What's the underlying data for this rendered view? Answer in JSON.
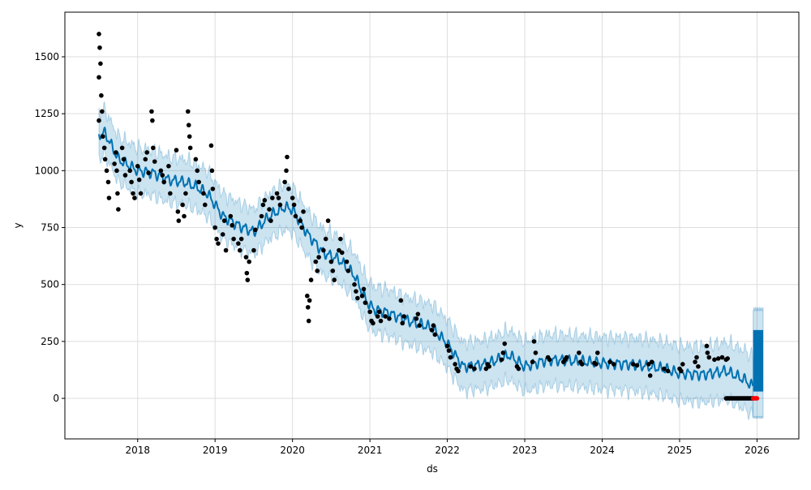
{
  "chart_data": {
    "type": "line",
    "title": "",
    "xlabel": "ds",
    "ylabel": "y",
    "xlim": [
      2017.06,
      2026.54
    ],
    "ylim": [
      -178,
      1696
    ],
    "grid": true,
    "x_ticks": [
      2018,
      2019,
      2020,
      2021,
      2022,
      2023,
      2024,
      2025,
      2026
    ],
    "y_ticks": [
      0,
      250,
      500,
      750,
      1000,
      1250,
      1500
    ],
    "colors": {
      "yhat": "#0072B2",
      "band": "#0072B2",
      "observed": "#000000",
      "flagged": "#FF0000"
    },
    "yhat": [
      [
        2017.5,
        1160
      ],
      [
        2017.58,
        1165
      ],
      [
        2017.75,
        1050
      ],
      [
        2018.0,
        1000
      ],
      [
        2018.2,
        990
      ],
      [
        2018.4,
        960
      ],
      [
        2018.6,
        950
      ],
      [
        2018.75,
        930
      ],
      [
        2018.9,
        900
      ],
      [
        2019.1,
        800
      ],
      [
        2019.3,
        760
      ],
      [
        2019.5,
        730
      ],
      [
        2019.7,
        800
      ],
      [
        2019.9,
        840
      ],
      [
        2020.0,
        830
      ],
      [
        2020.2,
        720
      ],
      [
        2020.4,
        640
      ],
      [
        2020.6,
        610
      ],
      [
        2020.8,
        540
      ],
      [
        2020.95,
        430
      ],
      [
        2021.05,
        390
      ],
      [
        2021.2,
        380
      ],
      [
        2021.5,
        340
      ],
      [
        2021.8,
        310
      ],
      [
        2022.0,
        240
      ],
      [
        2022.2,
        140
      ],
      [
        2022.5,
        150
      ],
      [
        2022.8,
        190
      ],
      [
        2023.0,
        140
      ],
      [
        2023.3,
        170
      ],
      [
        2023.6,
        165
      ],
      [
        2024.0,
        155
      ],
      [
        2024.4,
        150
      ],
      [
        2024.8,
        130
      ],
      [
        2025.0,
        110
      ],
      [
        2025.3,
        105
      ],
      [
        2025.6,
        120
      ],
      [
        2025.85,
        80
      ],
      [
        2025.95,
        50
      ]
    ],
    "band_halfwidth": [
      [
        2017.5,
        100
      ],
      [
        2021.0,
        100
      ],
      [
        2023.0,
        110
      ],
      [
        2025.0,
        120
      ],
      [
        2025.95,
        130
      ]
    ],
    "future": {
      "x_range": [
        2025.95,
        2026.08
      ],
      "yhat_range": [
        30,
        300
      ],
      "band": [
        -90,
        400
      ]
    },
    "observed": [
      [
        2017.5,
        1600
      ],
      [
        2017.51,
        1540
      ],
      [
        2017.52,
        1470
      ],
      [
        2017.5,
        1410
      ],
      [
        2017.53,
        1330
      ],
      [
        2017.54,
        1260
      ],
      [
        2017.5,
        1220
      ],
      [
        2017.55,
        1150
      ],
      [
        2017.57,
        1100
      ],
      [
        2017.58,
        1050
      ],
      [
        2017.6,
        1000
      ],
      [
        2017.62,
        950
      ],
      [
        2017.63,
        880
      ],
      [
        2017.7,
        1030
      ],
      [
        2017.72,
        1080
      ],
      [
        2017.73,
        1000
      ],
      [
        2017.74,
        900
      ],
      [
        2017.75,
        830
      ],
      [
        2017.8,
        1100
      ],
      [
        2017.82,
        1050
      ],
      [
        2017.84,
        980
      ],
      [
        2017.9,
        1000
      ],
      [
        2017.92,
        950
      ],
      [
        2017.94,
        900
      ],
      [
        2017.96,
        880
      ],
      [
        2018.0,
        1020
      ],
      [
        2018.02,
        960
      ],
      [
        2018.04,
        900
      ],
      [
        2018.1,
        1050
      ],
      [
        2018.12,
        1080
      ],
      [
        2018.14,
        990
      ],
      [
        2018.18,
        1260
      ],
      [
        2018.19,
        1220
      ],
      [
        2018.2,
        1100
      ],
      [
        2018.22,
        1040
      ],
      [
        2018.3,
        1000
      ],
      [
        2018.32,
        980
      ],
      [
        2018.34,
        950
      ],
      [
        2018.4,
        1020
      ],
      [
        2018.42,
        900
      ],
      [
        2018.5,
        1090
      ],
      [
        2018.52,
        820
      ],
      [
        2018.53,
        780
      ],
      [
        2018.58,
        850
      ],
      [
        2018.6,
        800
      ],
      [
        2018.62,
        900
      ],
      [
        2018.65,
        1260
      ],
      [
        2018.66,
        1200
      ],
      [
        2018.67,
        1150
      ],
      [
        2018.68,
        1100
      ],
      [
        2018.75,
        1050
      ],
      [
        2018.77,
        1000
      ],
      [
        2018.79,
        950
      ],
      [
        2018.85,
        900
      ],
      [
        2018.87,
        850
      ],
      [
        2018.95,
        1110
      ],
      [
        2018.96,
        1000
      ],
      [
        2018.97,
        920
      ],
      [
        2019.0,
        750
      ],
      [
        2019.02,
        700
      ],
      [
        2019.04,
        680
      ],
      [
        2019.1,
        720
      ],
      [
        2019.12,
        780
      ],
      [
        2019.14,
        650
      ],
      [
        2019.2,
        800
      ],
      [
        2019.22,
        760
      ],
      [
        2019.24,
        700
      ],
      [
        2019.3,
        680
      ],
      [
        2019.32,
        650
      ],
      [
        2019.34,
        700
      ],
      [
        2019.4,
        620
      ],
      [
        2019.41,
        550
      ],
      [
        2019.42,
        520
      ],
      [
        2019.44,
        600
      ],
      [
        2019.5,
        650
      ],
      [
        2019.52,
        740
      ],
      [
        2019.6,
        800
      ],
      [
        2019.62,
        850
      ],
      [
        2019.64,
        870
      ],
      [
        2019.7,
        830
      ],
      [
        2019.72,
        780
      ],
      [
        2019.74,
        880
      ],
      [
        2019.8,
        900
      ],
      [
        2019.82,
        880
      ],
      [
        2019.84,
        850
      ],
      [
        2019.9,
        950
      ],
      [
        2019.92,
        1000
      ],
      [
        2019.93,
        1060
      ],
      [
        2019.95,
        920
      ],
      [
        2020.0,
        880
      ],
      [
        2020.02,
        850
      ],
      [
        2020.04,
        800
      ],
      [
        2020.1,
        780
      ],
      [
        2020.12,
        750
      ],
      [
        2020.14,
        820
      ],
      [
        2020.19,
        450
      ],
      [
        2020.2,
        400
      ],
      [
        2020.21,
        340
      ],
      [
        2020.22,
        430
      ],
      [
        2020.24,
        520
      ],
      [
        2020.3,
        600
      ],
      [
        2020.32,
        560
      ],
      [
        2020.34,
        620
      ],
      [
        2020.4,
        650
      ],
      [
        2020.43,
        700
      ],
      [
        2020.46,
        780
      ],
      [
        2020.5,
        600
      ],
      [
        2020.52,
        560
      ],
      [
        2020.54,
        520
      ],
      [
        2020.6,
        650
      ],
      [
        2020.62,
        700
      ],
      [
        2020.64,
        640
      ],
      [
        2020.7,
        600
      ],
      [
        2020.72,
        560
      ],
      [
        2020.8,
        500
      ],
      [
        2020.82,
        470
      ],
      [
        2020.84,
        440
      ],
      [
        2020.9,
        450
      ],
      [
        2020.92,
        480
      ],
      [
        2020.94,
        420
      ],
      [
        2021.0,
        380
      ],
      [
        2021.02,
        340
      ],
      [
        2021.04,
        330
      ],
      [
        2021.1,
        360
      ],
      [
        2021.12,
        380
      ],
      [
        2021.14,
        340
      ],
      [
        2021.2,
        360
      ],
      [
        2021.25,
        350
      ],
      [
        2021.4,
        430
      ],
      [
        2021.42,
        330
      ],
      [
        2021.44,
        360
      ],
      [
        2021.6,
        350
      ],
      [
        2021.62,
        370
      ],
      [
        2021.64,
        320
      ],
      [
        2021.8,
        300
      ],
      [
        2021.82,
        320
      ],
      [
        2021.84,
        280
      ],
      [
        2022.0,
        230
      ],
      [
        2022.02,
        210
      ],
      [
        2022.04,
        180
      ],
      [
        2022.1,
        150
      ],
      [
        2022.12,
        130
      ],
      [
        2022.14,
        120
      ],
      [
        2022.3,
        140
      ],
      [
        2022.35,
        130
      ],
      [
        2022.5,
        130
      ],
      [
        2022.52,
        150
      ],
      [
        2022.54,
        140
      ],
      [
        2022.7,
        170
      ],
      [
        2022.72,
        200
      ],
      [
        2022.74,
        240
      ],
      [
        2022.9,
        140
      ],
      [
        2022.92,
        130
      ],
      [
        2023.1,
        160
      ],
      [
        2023.12,
        250
      ],
      [
        2023.14,
        200
      ],
      [
        2023.3,
        180
      ],
      [
        2023.32,
        170
      ],
      [
        2023.5,
        160
      ],
      [
        2023.52,
        170
      ],
      [
        2023.54,
        180
      ],
      [
        2023.7,
        200
      ],
      [
        2023.72,
        160
      ],
      [
        2023.74,
        150
      ],
      [
        2023.9,
        155
      ],
      [
        2023.92,
        150
      ],
      [
        2023.94,
        200
      ],
      [
        2024.1,
        160
      ],
      [
        2024.15,
        150
      ],
      [
        2024.4,
        150
      ],
      [
        2024.45,
        145
      ],
      [
        2024.6,
        150
      ],
      [
        2024.62,
        100
      ],
      [
        2024.64,
        160
      ],
      [
        2024.8,
        130
      ],
      [
        2024.85,
        120
      ],
      [
        2025.0,
        130
      ],
      [
        2025.02,
        120
      ],
      [
        2025.04,
        150
      ],
      [
        2025.2,
        160
      ],
      [
        2025.22,
        180
      ],
      [
        2025.24,
        140
      ],
      [
        2025.35,
        230
      ],
      [
        2025.36,
        200
      ],
      [
        2025.38,
        180
      ],
      [
        2025.45,
        170
      ],
      [
        2025.5,
        175
      ],
      [
        2025.55,
        180
      ],
      [
        2025.6,
        170
      ],
      [
        2025.62,
        175
      ]
    ],
    "observed_zero": {
      "x_range": [
        2025.6,
        2025.95
      ],
      "value": 0
    },
    "flagged_zero": {
      "x_range": [
        2025.95,
        2026.0
      ],
      "value": 0
    }
  }
}
